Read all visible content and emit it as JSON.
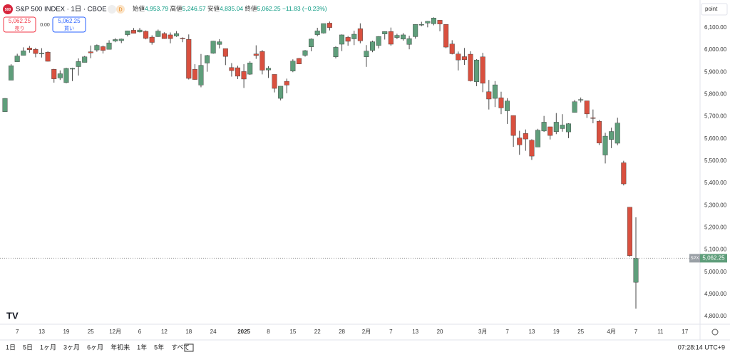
{
  "header": {
    "title": "S&P 500 INDEX · 1日 · CBOE",
    "badge": "D",
    "logo": "500",
    "open_label": "始値",
    "open": "4,953.79",
    "high_label": "高値",
    "high": "5,246.57",
    "low_label": "安値",
    "low": "4,835.04",
    "close_label": "終値",
    "close": "5,062.25",
    "change": "−11.83 (−0.23%)",
    "sell_label": "売り",
    "buy_label": "買い",
    "spread": "0.00",
    "axis_unit": "point",
    "symbol": "SPX"
  },
  "toolbar": {
    "ranges": [
      "1日",
      "5日",
      "1ヶ月",
      "3ヶ月",
      "6ヶ月",
      "年初来",
      "1年",
      "5年",
      "すべて"
    ],
    "clock": "07:28:14 UTC+9"
  },
  "chart_data": {
    "type": "candlestick",
    "up_color": "#5f9e7b",
    "down_color": "#d9503f",
    "wick_color": "#4a4a4a",
    "ylim": [
      4765,
      6209
    ],
    "yticks": [
      {
        "value": 4800,
        "label": "4,800.00"
      },
      {
        "value": 4900,
        "label": "4,900.00"
      },
      {
        "value": 5000,
        "label": "5,000.00"
      },
      {
        "value": 5100,
        "label": "5,100.00"
      },
      {
        "value": 5200,
        "label": "5,200.00"
      },
      {
        "value": 5300,
        "label": "5,300.00"
      },
      {
        "value": 5400,
        "label": "5,400.00"
      },
      {
        "value": 5500,
        "label": "5,500.00"
      },
      {
        "value": 5600,
        "label": "5,600.00"
      },
      {
        "value": 5700,
        "label": "5,700.00"
      },
      {
        "value": 5800,
        "label": "5,800.00"
      },
      {
        "value": 5900,
        "label": "5,900.00"
      },
      {
        "value": 6000,
        "label": "6,000.00"
      },
      {
        "value": 6100,
        "label": "6,100.00"
      }
    ],
    "last_price": {
      "value": 5062.25,
      "label": "5,062.25"
    },
    "categories": [
      null,
      null,
      "7",
      null,
      null,
      null,
      "13",
      null,
      null,
      null,
      "19",
      null,
      null,
      null,
      "25",
      null,
      null,
      null,
      "12月",
      null,
      null,
      null,
      "6",
      null,
      null,
      null,
      "12",
      null,
      null,
      null,
      "18",
      null,
      null,
      null,
      "24",
      null,
      null,
      null,
      null,
      "2025",
      null,
      null,
      null,
      "8",
      null,
      null,
      null,
      "15",
      null,
      null,
      null,
      "22",
      null,
      null,
      null,
      "28",
      null,
      null,
      null,
      "2月",
      null,
      null,
      null,
      "7",
      null,
      null,
      null,
      "13",
      null,
      null,
      null,
      "20",
      null,
      null,
      null,
      null,
      null,
      null,
      "3月",
      null,
      null,
      null,
      "7",
      null,
      null,
      null,
      "13",
      null,
      null,
      null,
      "19",
      null,
      null,
      null,
      "25",
      null,
      null,
      null,
      null,
      "4月",
      null,
      null,
      null,
      "7",
      null,
      null,
      null,
      "11",
      null,
      null,
      null,
      "17"
    ],
    "open": [
      5722,
      5864,
      5947,
      5976,
      6009,
      6003,
      5985,
      5990,
      5913,
      5874,
      5853,
      5917,
      5925,
      5944,
      5992,
      6000,
      6015,
      6003,
      6040,
      6042,
      6069,
      6089,
      6081,
      6084,
      6058,
      6060,
      6074,
      6068,
      6063,
      6053,
      6048,
      5913,
      5842,
      5941,
      5985,
      6025,
      6006,
      5921,
      5920,
      5903,
      5891,
      5982,
      5993,
      5910,
      5890,
      5782,
      5859,
      5905,
      5962,
      5976,
      6014,
      6069,
      6076,
      6121,
      5969,
      6026,
      6057,
      6050,
      6096,
      5969,
      5998,
      6020,
      6072,
      6083,
      6056,
      6049,
      6025,
      6060,
      6115,
      6121,
      6118,
      6134,
      6115,
      6027,
      5982,
      5970,
      5981,
      5857,
      5969,
      5812,
      5782,
      5785,
      5726,
      5705,
      5604,
      5624,
      5594,
      5563,
      5635,
      5654,
      5632,
      5646,
      5631,
      5719,
      5775,
      5771,
      5695,
      5679,
      5527,
      5597,
      5580,
      5492,
      5292,
      4953.79,
      null,
      null,
      null,
      null,
      null,
      null,
      null,
      null
    ],
    "high": [
      5783,
      5936,
      5983,
      6012,
      6018,
      6010,
      6008,
      5994,
      5915,
      5908,
      5920,
      5920,
      5962,
      5973,
      6020,
      6025,
      6020,
      6044,
      6053,
      6051,
      6087,
      6099,
      6099,
      6088,
      6066,
      6092,
      6080,
      6079,
      6085,
      6057,
      6070,
      5936,
      5982,
      5978,
      6041,
      6049,
      6006,
      5941,
      5929,
      5936,
      5949,
      6021,
      6000,
      5927,
      5890,
      5837,
      5871,
      5958,
      5964,
      6000,
      6052,
      6100,
      6119,
      6128,
      6017,
      6070,
      6063,
      6087,
      6120,
      6022,
      6042,
      6062,
      6084,
      6101,
      6073,
      6076,
      6064,
      6116,
      6127,
      6130,
      6147,
      6134,
      6115,
      6044,
      5993,
      6009,
      5994,
      5959,
      5987,
      5865,
      5860,
      5812,
      5783,
      5705,
      5636,
      5642,
      5598,
      5645,
      5703,
      5654,
      5716,
      5711,
      5670,
      5775,
      5786,
      5771,
      5732,
      5685,
      5627,
      5650,
      5695,
      5501,
      5292,
      5246.57,
      null,
      null,
      null,
      null,
      null,
      null,
      null,
      null
    ],
    "low": [
      5722,
      5864,
      5947,
      5976,
      5988,
      5967,
      5966,
      5948,
      5853,
      5865,
      5850,
      5860,
      5885,
      5944,
      5963,
      5992,
      5984,
      6003,
      6035,
      6031,
      6061,
      6075,
      6079,
      6048,
      6024,
      6059,
      6050,
      6030,
      6059,
      6035,
      5867,
      5866,
      5832,
      5902,
      5983,
      6007,
      5932,
      5880,
      5869,
      5829,
      5888,
      5960,
      5890,
      5874,
      5809,
      5773,
      5805,
      5900,
      5936,
      5970,
      5994,
      6062,
      6074,
      6088,
      5962,
      5995,
      6019,
      6022,
      6030,
      5924,
      5990,
      6007,
      6047,
      6019,
      6049,
      6042,
      6003,
      6051,
      6107,
      6102,
      6111,
      6084,
      6008,
      5980,
      5908,
      5933,
      5858,
      5837,
      5810,
      5732,
      5743,
      5711,
      5667,
      5564,
      5528,
      5546,
      5505,
      5563,
      5631,
      5597,
      5621,
      5632,
      5603,
      5719,
      5764,
      5694,
      5670,
      5572,
      5489,
      5558,
      5571,
      5390,
      5069,
      4835.04,
      null,
      null,
      null,
      null,
      null,
      null,
      null,
      null
    ],
    "close": [
      5782,
      5929,
      5973,
      5996,
      6001,
      5984,
      5985,
      5949,
      5870,
      5893,
      5917,
      5917,
      5948,
      5969,
      5987,
      6021,
      5998,
      6032,
      6047,
      6049,
      6086,
      6075,
      6090,
      6052,
      6034,
      6085,
      6051,
      6051,
      6074,
      6050,
      5872,
      5867,
      5931,
      5975,
      6040,
      6037,
      5971,
      5907,
      5882,
      5869,
      5942,
      5975,
      5909,
      5918,
      5827,
      5837,
      5842,
      5950,
      5937,
      5997,
      6049,
      6086,
      6119,
      6101,
      6012,
      6068,
      6039,
      6071,
      6041,
      5995,
      6037,
      6061,
      6083,
      6026,
      6066,
      6068,
      6051,
      6115,
      6115,
      6129,
      6144,
      6117,
      6013,
      5983,
      5955,
      5956,
      5861,
      5955,
      5850,
      5779,
      5843,
      5739,
      5770,
      5615,
      5573,
      5599,
      5522,
      5639,
      5675,
      5615,
      5675,
      5662,
      5668,
      5767,
      5777,
      5712,
      5693,
      5581,
      5612,
      5633,
      5671,
      5397,
      5074,
      5062.25,
      null,
      null,
      null,
      null,
      null,
      null,
      null,
      null
    ]
  }
}
